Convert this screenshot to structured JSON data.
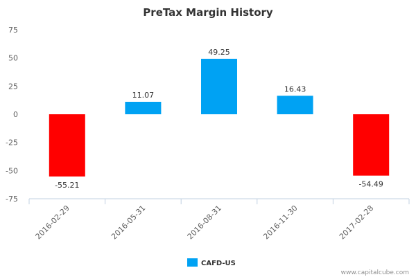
{
  "chart_data": {
    "type": "bar",
    "title": "PreTax Margin History",
    "categories": [
      "2016-02-29",
      "2016-05-31",
      "2016-08-31",
      "2016-11-30",
      "2017-02-28"
    ],
    "series": [
      {
        "name": "CAFD-US",
        "values": [
          -55.21,
          11.07,
          49.25,
          16.43,
          -54.49
        ]
      }
    ],
    "data_labels": [
      "-55.21",
      "11.07",
      "49.25",
      "16.43",
      "-54.49"
    ],
    "y_ticks": [
      75,
      50,
      25,
      0,
      -25,
      -50,
      -75
    ],
    "ylim": [
      -75,
      75
    ],
    "grid": false,
    "legend_position": "bottom-center",
    "x_tick_rotation": "-45deg"
  },
  "colors": {
    "positive": "#00A2F3",
    "negative": "#FF0000",
    "axis": "#C0D0E0",
    "legend": "#00A2F3"
  },
  "credit": "www.capitalcube.com"
}
